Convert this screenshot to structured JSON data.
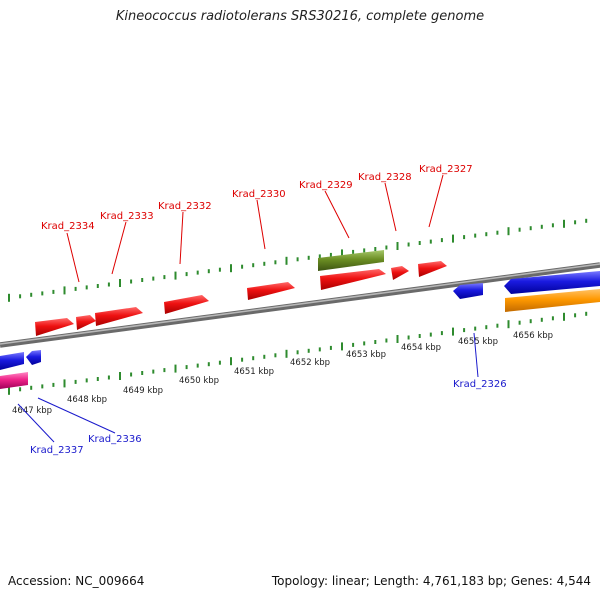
{
  "title": "Kineococcus radiotolerans SRS30216, complete genome",
  "footer": {
    "accession": "Accession: NC_009664",
    "stats": "Topology: linear; Length: 4,761,183 bp; Genes: 4,544"
  },
  "colors": {
    "background": "#ffffff",
    "backbone": "#8a8a8a",
    "tick": "#2e8b2e",
    "gene_red": "#ee1111",
    "gene_blue": "#1a1ae0",
    "gene_olive": "#6b8e23",
    "gene_orange": "#ff9900",
    "gene_magenta": "#ee2288",
    "label_red": "#dd0000",
    "label_blue": "#1a1acc",
    "kbp_text": "#222222"
  },
  "scale_labels": [
    "4647 kbp",
    "4648 kbp",
    "4649 kbp",
    "4650 kbp",
    "4651 kbp",
    "4652 kbp",
    "4653 kbp",
    "4654 kbp",
    "4655 kbp",
    "4656 kbp"
  ],
  "gene_labels": {
    "forward": [
      "Krad_2334",
      "Krad_2333",
      "Krad_2332",
      "Krad_2330",
      "Krad_2329",
      "Krad_2328",
      "Krad_2327"
    ],
    "reverse": [
      "Krad_2337",
      "Krad_2336",
      "Krad_2326"
    ]
  }
}
